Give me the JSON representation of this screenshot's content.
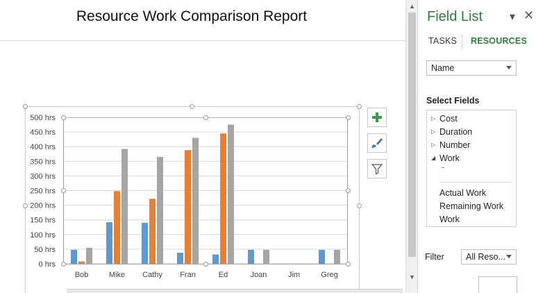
{
  "report": {
    "title": "Resource Work Comparison Report"
  },
  "chart_data": {
    "type": "bar",
    "categories": [
      "Bob",
      "Mike",
      "Cathy",
      "Fran",
      "Ed",
      "Joan",
      "Jim",
      "Greg"
    ],
    "series": [
      {
        "color": "#5B9BD5",
        "values": [
          48,
          142,
          140,
          38,
          32,
          48,
          0,
          48
        ]
      },
      {
        "color": "#ED7D31",
        "values": [
          8,
          248,
          222,
          388,
          445,
          0,
          0,
          0
        ]
      },
      {
        "color": "#A5A5A5",
        "values": [
          55,
          392,
          365,
          430,
          475,
          48,
          0,
          48
        ]
      }
    ],
    "yticks": [
      "0 hrs",
      "50 hrs",
      "100 hrs",
      "150 hrs",
      "200 hrs",
      "250 hrs",
      "300 hrs",
      "350 hrs",
      "400 hrs",
      "450 hrs",
      "500 hrs"
    ],
    "ylim": [
      0,
      500
    ],
    "grid": true,
    "legend": "none"
  },
  "chart_tools": {
    "add_icon": "plus-icon",
    "style_icon": "paintbrush-icon",
    "filter_icon": "funnel-icon"
  },
  "field_list": {
    "title": "Field List",
    "tabs": {
      "tasks": "TASKS",
      "resources": "RESOURCES"
    },
    "category_select": "Name",
    "select_fields_label": "Select Fields",
    "fields": [
      {
        "label": "Cost",
        "expanded": false
      },
      {
        "label": "Duration",
        "expanded": false
      },
      {
        "label": "Number",
        "expanded": false
      },
      {
        "label": "Work",
        "expanded": true
      }
    ],
    "work_subfields": [
      "Actual Work",
      "Remaining Work",
      "Work"
    ],
    "filter_label": "Filter",
    "filter_value": "All Reso..."
  },
  "colors": {
    "accent_green": "#2F7E3F"
  }
}
